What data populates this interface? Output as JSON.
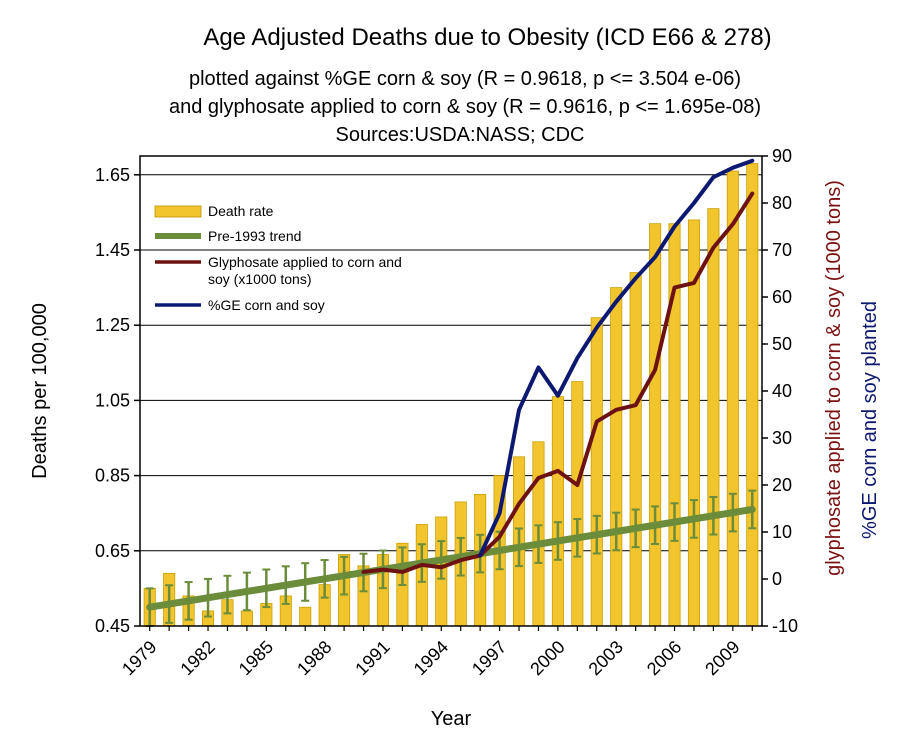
{
  "chart_data": {
    "type": "bar",
    "title": "Age Adjusted Deaths due to Obesity (ICD E66 & 278)",
    "subtitles": [
      "plotted against %GE corn & soy (R = 0.9618, p <= 3.504 e-06)",
      "and glyphosate applied to corn & soy (R = 0.9616, p <= 1.695e-08)",
      "Sources:USDA:NASS; CDC"
    ],
    "xlabel": "Year",
    "ylabel_left": "Deaths per 100,000",
    "ylabel_right_1": "glyphosate applied to corn & soy (1000 tons)",
    "ylabel_right_2": "%GE corn and soy planted",
    "ylim_left": [
      0.45,
      1.7
    ],
    "ylim_right": [
      -10,
      90
    ],
    "yticks_left": [
      "0.45",
      "0.65",
      "0.85",
      "1.05",
      "1.25",
      "1.45",
      "1.65"
    ],
    "yticks_right": [
      "-10",
      "0",
      "10",
      "20",
      "30",
      "40",
      "50",
      "60",
      "70",
      "80",
      "90"
    ],
    "xticks": [
      "1979",
      "1982",
      "1985",
      "1988",
      "1991",
      "1994",
      "1997",
      "2000",
      "2003",
      "2006",
      "2009"
    ],
    "years": [
      1979,
      1980,
      1981,
      1982,
      1983,
      1984,
      1985,
      1986,
      1987,
      1988,
      1989,
      1990,
      1991,
      1992,
      1993,
      1994,
      1995,
      1996,
      1997,
      1998,
      1999,
      2000,
      2001,
      2002,
      2003,
      2004,
      2005,
      2006,
      2007,
      2008,
      2009,
      2010
    ],
    "legend": {
      "position": "top-left",
      "entries": [
        "Death rate",
        "Pre-1993 trend",
        "Glyphosate applied to corn and soy (x1000 tons)",
        "%GE corn and soy"
      ]
    },
    "series": [
      {
        "name": "Death rate",
        "type": "bar",
        "axis": "left",
        "color": "#f2c52e",
        "values": [
          0.55,
          0.59,
          0.53,
          0.49,
          0.52,
          0.49,
          0.51,
          0.53,
          0.5,
          0.56,
          0.64,
          0.61,
          0.64,
          0.67,
          0.72,
          0.74,
          0.78,
          0.8,
          0.85,
          0.9,
          0.94,
          1.06,
          1.1,
          1.27,
          1.35,
          1.39,
          1.52,
          1.52,
          1.53,
          1.56,
          1.66,
          1.68
        ]
      },
      {
        "name": "Pre-1993 trend",
        "type": "line",
        "axis": "left",
        "color": "#6b8c3a",
        "start_year": 1979,
        "end_year": 2010,
        "start_value": 0.5,
        "end_value": 0.76,
        "error_margin": 0.05
      },
      {
        "name": "Glyphosate applied to corn and soy (x1000 tons)",
        "type": "line",
        "axis": "right",
        "color": "#6d1212",
        "years": [
          1990,
          1991,
          1992,
          1993,
          1994,
          1995,
          1996,
          1997,
          1998,
          1999,
          2000,
          2001,
          2002,
          2003,
          2004,
          2005,
          2006,
          2007,
          2008,
          2009,
          2010
        ],
        "values": [
          1.5,
          2,
          1.5,
          3,
          2.5,
          4,
          5,
          9,
          16,
          21.5,
          23,
          20,
          33.5,
          36,
          37,
          44.5,
          62,
          63,
          70.5,
          75.5,
          82
        ]
      },
      {
        "name": "%GE corn and soy",
        "type": "line",
        "axis": "right",
        "color": "#0d1870",
        "years": [
          1996,
          1997,
          1998,
          1999,
          2000,
          2001,
          2002,
          2003,
          2004,
          2005,
          2006,
          2007,
          2008,
          2009,
          2010
        ],
        "values": [
          5,
          14,
          36,
          45,
          39,
          47,
          53.5,
          59,
          64,
          68.5,
          75,
          80,
          85.5,
          87.5,
          89
        ]
      }
    ]
  }
}
